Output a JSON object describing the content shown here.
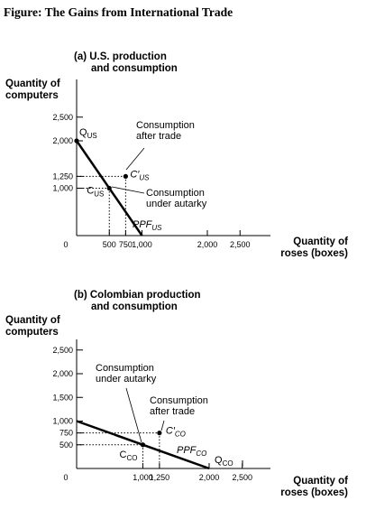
{
  "figure_title": "Figure: The Gains from International Trade",
  "chart_data": [
    {
      "type": "line",
      "panel_title_line1": "(a) U.S. production",
      "panel_title_line2": "and consumption",
      "ylabel_line1": "Quantity of",
      "ylabel_line2": "computers",
      "xlabel_line1": "Quantity of",
      "xlabel_line2": "roses (boxes)",
      "xlim": [
        0,
        2600
      ],
      "ylim": [
        0,
        2600
      ],
      "x_ticks": [
        {
          "v": 0,
          "label": "0"
        },
        {
          "v": 500,
          "label": "500"
        },
        {
          "v": 750,
          "label": "750"
        },
        {
          "v": 1000,
          "label": "1,000"
        },
        {
          "v": 2000,
          "label": "2,000"
        },
        {
          "v": 2500,
          "label": "2,500"
        }
      ],
      "y_ticks": [
        {
          "v": 1000,
          "label": "1,000"
        },
        {
          "v": 1250,
          "label": "1,250"
        },
        {
          "v": 2000,
          "label": "2,000"
        },
        {
          "v": 2500,
          "label": "2,500"
        }
      ],
      "ppf": {
        "x": [
          0,
          1000
        ],
        "y": [
          2000,
          0
        ],
        "label": "PPF",
        "sub": "US"
      },
      "points": [
        {
          "id": "q",
          "x": 0,
          "y": 2000,
          "label": "Q",
          "sub": "US"
        },
        {
          "id": "c",
          "x": 500,
          "y": 1000,
          "label": "C",
          "sub": "US"
        },
        {
          "id": "cp",
          "x": 750,
          "y": 1250,
          "label": "C′",
          "sub": "US"
        }
      ],
      "annotations": [
        {
          "target": "cp",
          "line1": "Consumption",
          "line2": "after trade"
        },
        {
          "target": "c",
          "line1": "Consumption",
          "line2": "under autarky"
        }
      ]
    },
    {
      "type": "line",
      "panel_title_line1": "(b) Colombian production",
      "panel_title_line2": "and consumption",
      "ylabel_line1": "Quantity of",
      "ylabel_line2": "computers",
      "xlabel_line1": "Quantity of",
      "xlabel_line2": "roses (boxes)",
      "xlim": [
        0,
        2600
      ],
      "ylim": [
        0,
        2600
      ],
      "x_ticks": [
        {
          "v": 0,
          "label": "0"
        },
        {
          "v": 1000,
          "label": "1,000"
        },
        {
          "v": 1250,
          "label": "1,250"
        },
        {
          "v": 2000,
          "label": "2,000"
        },
        {
          "v": 2500,
          "label": "2,500"
        }
      ],
      "y_ticks": [
        {
          "v": 500,
          "label": "500"
        },
        {
          "v": 750,
          "label": "750"
        },
        {
          "v": 1000,
          "label": "1,000"
        },
        {
          "v": 1500,
          "label": "1,500"
        },
        {
          "v": 2000,
          "label": "2,000"
        },
        {
          "v": 2500,
          "label": "2,500"
        }
      ],
      "ppf": {
        "x": [
          0,
          2000
        ],
        "y": [
          1000,
          0
        ],
        "label": "PPF",
        "sub": "CO"
      },
      "points": [
        {
          "id": "q",
          "x": 2000,
          "y": 0,
          "label": "Q",
          "sub": "CO"
        },
        {
          "id": "c",
          "x": 1000,
          "y": 500,
          "label": "C",
          "sub": "CO"
        },
        {
          "id": "cp",
          "x": 1250,
          "y": 750,
          "label": "C′",
          "sub": "CO"
        }
      ],
      "annotations": [
        {
          "target": "c",
          "line1": "Consumption",
          "line2": "under autarky"
        },
        {
          "target": "cp",
          "line1": "Consumption",
          "line2": "after trade"
        }
      ]
    }
  ]
}
